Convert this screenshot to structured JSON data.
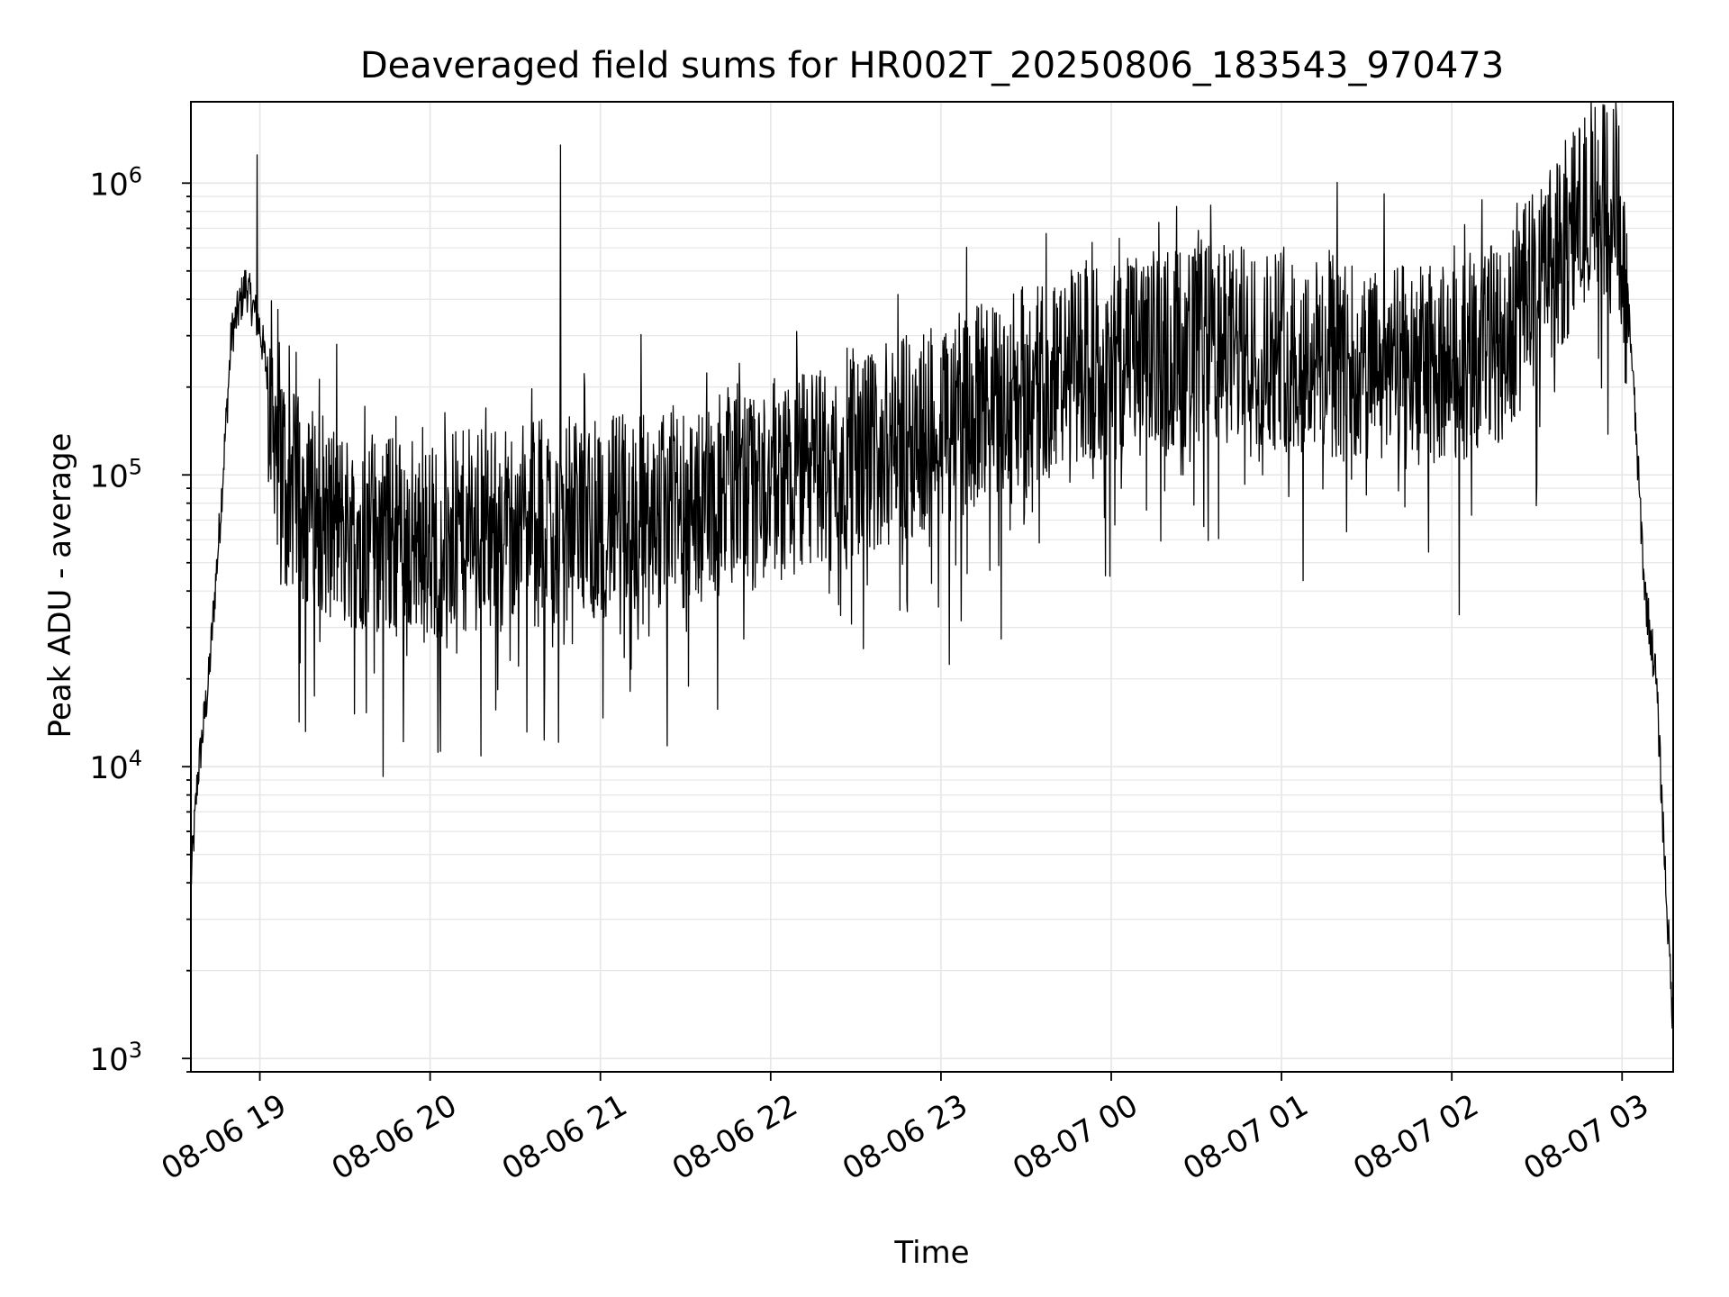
{
  "chart_data": {
    "type": "line",
    "title": "Deaveraged field sums for HR002T_20250806_183543_970473",
    "xlabel": "Time",
    "ylabel": "Peak ADU - average",
    "yscale": "log",
    "ylim": [
      900,
      1900000
    ],
    "xlim": [
      "2025-08-06 18:35:43",
      "2025-08-07 03:18:00"
    ],
    "grid": true,
    "legend": "none",
    "colors": {
      "line": "#000000",
      "grid": "#e6e6e6",
      "axes": "#000000",
      "background": "#ffffff"
    },
    "xticks": [
      {
        "t": "2025-08-06 19:00",
        "label": "08-06 19"
      },
      {
        "t": "2025-08-06 20:00",
        "label": "08-06 20"
      },
      {
        "t": "2025-08-06 21:00",
        "label": "08-06 21"
      },
      {
        "t": "2025-08-06 22:00",
        "label": "08-06 22"
      },
      {
        "t": "2025-08-06 23:00",
        "label": "08-06 23"
      },
      {
        "t": "2025-08-07 00:00",
        "label": "08-07 00"
      },
      {
        "t": "2025-08-07 01:00",
        "label": "08-07 01"
      },
      {
        "t": "2025-08-07 02:00",
        "label": "08-07 02"
      },
      {
        "t": "2025-08-07 03:00",
        "label": "08-07 03"
      }
    ],
    "yticks": [
      {
        "v": 1000,
        "base": "10",
        "exp": "3"
      },
      {
        "v": 10000,
        "base": "10",
        "exp": "4"
      },
      {
        "v": 100000,
        "base": "10",
        "exp": "5"
      },
      {
        "v": 1000000,
        "base": "10",
        "exp": "6"
      }
    ],
    "series_envelope": {
      "description_points": [
        {
          "t": "2025-08-06 18:35:43",
          "y": 4000
        },
        {
          "t": "2025-08-06 18:38",
          "y": 9000
        },
        {
          "t": "2025-08-06 18:42",
          "y": 20000
        },
        {
          "t": "2025-08-06 18:46",
          "y": 70000
        },
        {
          "t": "2025-08-06 18:50",
          "y": 300000
        },
        {
          "t": "2025-08-06 18:55",
          "y": 450000
        },
        {
          "t": "2025-08-06 19:00",
          "y": 320000
        },
        {
          "t": "2025-08-06 19:05",
          "y": 160000
        },
        {
          "t": "2025-08-06 19:10",
          "y": 90000
        },
        {
          "t": "2025-08-06 19:30",
          "y": 65000
        },
        {
          "t": "2025-08-06 20:00",
          "y": 60000
        },
        {
          "t": "2025-08-06 20:30",
          "y": 70000
        },
        {
          "t": "2025-08-06 21:00",
          "y": 72000
        },
        {
          "t": "2025-08-06 21:30",
          "y": 78000
        },
        {
          "t": "2025-08-06 22:00",
          "y": 95000
        },
        {
          "t": "2025-08-06 22:30",
          "y": 115000
        },
        {
          "t": "2025-08-06 23:00",
          "y": 150000
        },
        {
          "t": "2025-08-06 23:30",
          "y": 200000
        },
        {
          "t": "2025-08-07 00:00",
          "y": 250000
        },
        {
          "t": "2025-08-07 00:30",
          "y": 280000
        },
        {
          "t": "2025-08-07 01:00",
          "y": 270000
        },
        {
          "t": "2025-08-07 01:30",
          "y": 230000
        },
        {
          "t": "2025-08-07 02:00",
          "y": 240000
        },
        {
          "t": "2025-08-07 02:20",
          "y": 300000
        },
        {
          "t": "2025-08-07 02:35",
          "y": 550000
        },
        {
          "t": "2025-08-07 02:50",
          "y": 850000
        },
        {
          "t": "2025-08-07 02:58",
          "y": 900000
        },
        {
          "t": "2025-08-07 03:03",
          "y": 300000
        },
        {
          "t": "2025-08-07 03:08",
          "y": 40000
        },
        {
          "t": "2025-08-07 03:12",
          "y": 20000
        },
        {
          "t": "2025-08-07 03:16",
          "y": 3000
        },
        {
          "t": "2025-08-07 03:18",
          "y": 1300
        }
      ],
      "noise_amplitude_decades": 0.35,
      "spikes": [
        {
          "t": "2025-08-06 18:59",
          "y": 1250000
        },
        {
          "t": "2025-08-06 20:46",
          "y": 1350000
        },
        {
          "t": "2025-08-07 02:38",
          "y": 1150000
        }
      ]
    }
  }
}
